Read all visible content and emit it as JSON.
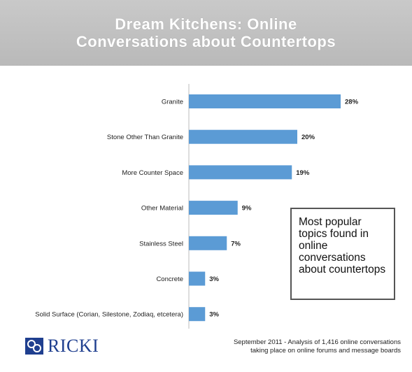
{
  "header": {
    "title_line1": "Dream Kitchens: Online",
    "title_line2": "Conversations about Countertops"
  },
  "chart_data": {
    "type": "bar",
    "orientation": "horizontal",
    "categories": [
      "Granite",
      "Stone Other Than Granite",
      "More Counter Space",
      "Other Material",
      "Stainless Steel",
      "Concrete",
      "Solid Surface (Corian, Silestone, Zodiaq, etcetera)"
    ],
    "values": [
      28,
      20,
      19,
      9,
      7,
      3,
      3
    ],
    "value_labels": [
      "28%",
      "20%",
      "19%",
      "9%",
      "7%",
      "3%",
      "3%"
    ],
    "unit": "%",
    "xlim": [
      0,
      30
    ],
    "grid": false,
    "bar_color": "#5b9bd5",
    "annotation": "Most popular topics found in online conversations about countertops"
  },
  "callout": {
    "text": "Most popular topics found in online conversations about countertops"
  },
  "logo": {
    "text": "RICKI",
    "color": "#1f3f8f"
  },
  "footnote": {
    "line1": "September 2011 - Analysis of 1,416 online conversations",
    "line2": "taking place on online forums and message boards"
  }
}
